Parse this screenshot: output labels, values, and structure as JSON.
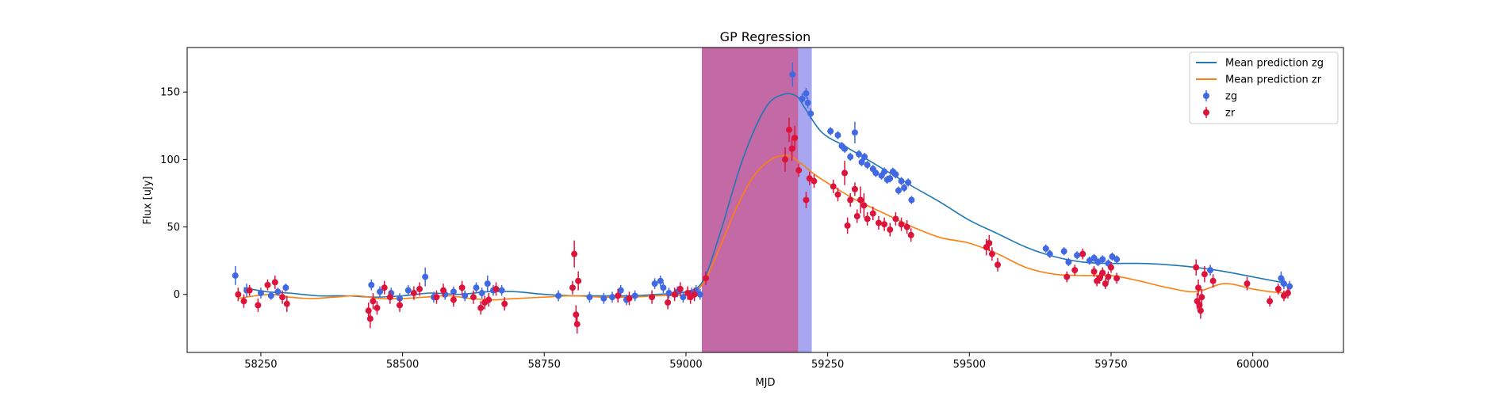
{
  "chart_data": {
    "type": "scatter",
    "title": "GP Regression",
    "xlabel": "MJD",
    "ylabel": "Flux [uJy]",
    "xlim": [
      58120,
      60160
    ],
    "ylim": [
      -43,
      183
    ],
    "xticks": [
      58250,
      58500,
      58750,
      59000,
      59250,
      59500,
      59750,
      60000
    ],
    "yticks": [
      0,
      50,
      100,
      150
    ],
    "grid": false,
    "legend_position": "top-right",
    "shaded_regions": [
      {
        "x0": 59028,
        "x1": 59198,
        "color": "#c36aa6"
      },
      {
        "x0": 59198,
        "x1": 59222,
        "color": "#a8a6f1"
      }
    ],
    "lines": [
      {
        "name": "Mean prediction zg",
        "color": "#1f77b4",
        "x": [
          58220,
          58260,
          58300,
          58350,
          58400,
          58450,
          58500,
          58550,
          58600,
          58650,
          58700,
          58750,
          58800,
          58850,
          58900,
          58950,
          59000,
          59030,
          59060,
          59100,
          59140,
          59170,
          59195,
          59210,
          59240,
          59280,
          59320,
          59360,
          59400,
          59450,
          59500,
          59550,
          59600,
          59650,
          59700,
          59750,
          59800,
          59850,
          59900,
          59950,
          60000,
          60050,
          60060
        ],
        "y": [
          5,
          2,
          1,
          -1,
          -1,
          -2,
          -1,
          1,
          0,
          2,
          2,
          0,
          -1,
          -1,
          -1,
          0,
          2,
          10,
          45,
          100,
          138,
          148,
          147,
          138,
          120,
          110,
          100,
          90,
          80,
          68,
          55,
          45,
          35,
          28,
          24,
          23,
          23,
          22,
          20,
          17,
          13,
          9,
          8
        ]
      },
      {
        "name": "Mean prediction zr",
        "color": "#ff7f0e",
        "x": [
          58210,
          58240,
          58270,
          58300,
          58340,
          58380,
          58420,
          58460,
          58500,
          58540,
          58580,
          58620,
          58660,
          58700,
          58750,
          58800,
          58850,
          58900,
          58950,
          59000,
          59030,
          59060,
          59090,
          59120,
          59150,
          59180,
          59200,
          59230,
          59260,
          59300,
          59350,
          59400,
          59450,
          59500,
          59550,
          59600,
          59650,
          59700,
          59750,
          59800,
          59850,
          59900,
          59950,
          60000,
          60030,
          60060
        ],
        "y": [
          -3,
          -1,
          0,
          -2,
          -3,
          -2,
          -1,
          -3,
          -3,
          -2,
          -1,
          -3,
          -4,
          -3,
          -2,
          -1,
          -2,
          -2,
          -1,
          0,
          8,
          35,
          65,
          88,
          100,
          103,
          98,
          88,
          80,
          70,
          60,
          50,
          42,
          38,
          30,
          20,
          15,
          14,
          14,
          10,
          5,
          2,
          8,
          4,
          2,
          1
        ]
      }
    ],
    "series": [
      {
        "name": "zg",
        "color": "#4169e1",
        "x": [
          58205,
          58225,
          58250,
          58268,
          58280,
          58294,
          58445,
          58460,
          58480,
          58495,
          58510,
          58540,
          58555,
          58575,
          58590,
          58610,
          58630,
          58640,
          58650,
          58660,
          58675,
          58775,
          58830,
          58855,
          58870,
          58885,
          58895,
          58910,
          58945,
          58955,
          58960,
          58970,
          58985,
          58995,
          59010,
          59018,
          59025,
          59188,
          59205,
          59212,
          59215,
          59220,
          59255,
          59268,
          59275,
          59280,
          59290,
          59298,
          59305,
          59310,
          59315,
          59320,
          59330,
          59335,
          59345,
          59350,
          59355,
          59360,
          59365,
          59370,
          59375,
          59380,
          59385,
          59392,
          59398,
          59635,
          59642,
          59667,
          59675,
          59690,
          59700,
          59712,
          59720,
          59727,
          59735,
          59745,
          59752,
          59760,
          59925,
          60050,
          60055,
          60065
        ],
        "y": [
          14,
          3,
          1,
          -1,
          2,
          5,
          7,
          2,
          1,
          -3,
          3,
          13,
          -2,
          0,
          2,
          -1,
          5,
          1,
          8,
          3,
          3,
          -1,
          -2,
          -3,
          -2,
          3,
          -4,
          -1,
          8,
          10,
          5,
          1,
          2,
          -2,
          1,
          3,
          0,
          163,
          145,
          149,
          142,
          134,
          121,
          118,
          110,
          108,
          102,
          120,
          104,
          98,
          102,
          96,
          93,
          90,
          88,
          91,
          85,
          86,
          91,
          89,
          77,
          84,
          79,
          83,
          70,
          34,
          30,
          32,
          24,
          29,
          30,
          25,
          27,
          24,
          26,
          23,
          28,
          26,
          18,
          12,
          8,
          6
        ],
        "yerr": [
          7,
          5,
          4,
          3,
          3,
          3,
          4,
          4,
          4,
          4,
          4,
          7,
          4,
          4,
          4,
          4,
          4,
          4,
          6,
          4,
          4,
          4,
          4,
          4,
          4,
          4,
          4,
          4,
          4,
          4,
          4,
          4,
          4,
          4,
          4,
          4,
          4,
          9,
          4,
          4,
          4,
          4,
          3,
          3,
          3,
          3,
          3,
          8,
          3,
          3,
          3,
          3,
          3,
          3,
          3,
          3,
          3,
          3,
          3,
          3,
          3,
          3,
          3,
          3,
          3,
          3,
          3,
          3,
          3,
          3,
          3,
          3,
          3,
          3,
          3,
          3,
          3,
          3,
          4,
          5,
          4,
          4
        ]
      },
      {
        "name": "zr",
        "color": "#dc143c",
        "x": [
          58210,
          58220,
          58230,
          58245,
          58262,
          58275,
          58288,
          58296,
          58440,
          58443,
          58448,
          58455,
          58468,
          58478,
          58495,
          58520,
          58530,
          58560,
          58572,
          58590,
          58605,
          58625,
          58638,
          58645,
          58652,
          58665,
          58680,
          58800,
          58803,
          58806,
          58808,
          58810,
          58880,
          58900,
          58940,
          58968,
          58980,
          58990,
          59003,
          59008,
          59015,
          59035,
          59175,
          59182,
          59187,
          59192,
          59199,
          59212,
          59218,
          59226,
          59260,
          59268,
          59280,
          59285,
          59290,
          59298,
          59302,
          59308,
          59314,
          59320,
          59330,
          59340,
          59350,
          59360,
          59370,
          59380,
          59390,
          59397,
          59530,
          59535,
          59540,
          59550,
          59672,
          59686,
          59700,
          59720,
          59725,
          59730,
          59735,
          59740,
          59745,
          59750,
          59760,
          59900,
          59902,
          59904,
          59906,
          59908,
          59910,
          59915,
          59930,
          59990,
          60030,
          60045,
          60055,
          60062
        ],
        "y": [
          0,
          -5,
          3,
          -8,
          7,
          9,
          -2,
          -7,
          -12,
          -18,
          -5,
          -10,
          5,
          -2,
          -8,
          1,
          4,
          -2,
          3,
          -4,
          5,
          -2,
          -10,
          -6,
          -4,
          4,
          -7,
          5,
          30,
          -15,
          -22,
          10,
          -1,
          -3,
          -2,
          -6,
          0,
          4,
          1,
          -2,
          0,
          12,
          100,
          122,
          108,
          116,
          92,
          70,
          86,
          84,
          80,
          74,
          90,
          51,
          70,
          78,
          58,
          70,
          66,
          56,
          60,
          53,
          52,
          48,
          56,
          52,
          50,
          44,
          35,
          38,
          30,
          22,
          13,
          18,
          30,
          17,
          10,
          12,
          16,
          8,
          13,
          20,
          12,
          20,
          -5,
          5,
          -8,
          -12,
          -2,
          15,
          10,
          8,
          -5,
          4,
          -1,
          1
        ],
        "yerr": [
          5,
          5,
          4,
          5,
          4,
          5,
          5,
          6,
          6,
          7,
          6,
          5,
          5,
          5,
          5,
          5,
          5,
          5,
          5,
          5,
          5,
          5,
          5,
          5,
          5,
          5,
          5,
          5,
          10,
          7,
          7,
          7,
          5,
          5,
          5,
          5,
          5,
          5,
          5,
          5,
          5,
          5,
          9,
          9,
          9,
          9,
          5,
          6,
          5,
          5,
          5,
          5,
          9,
          6,
          5,
          5,
          5,
          10,
          9,
          5,
          5,
          5,
          5,
          5,
          5,
          5,
          5,
          5,
          6,
          6,
          5,
          5,
          4,
          4,
          4,
          4,
          4,
          4,
          4,
          4,
          4,
          4,
          4,
          6,
          6,
          6,
          6,
          6,
          6,
          6,
          5,
          5,
          4,
          4,
          4,
          4
        ]
      }
    ],
    "legend": [
      "Mean prediction zg",
      "Mean prediction zr",
      "zg",
      "zr"
    ]
  }
}
